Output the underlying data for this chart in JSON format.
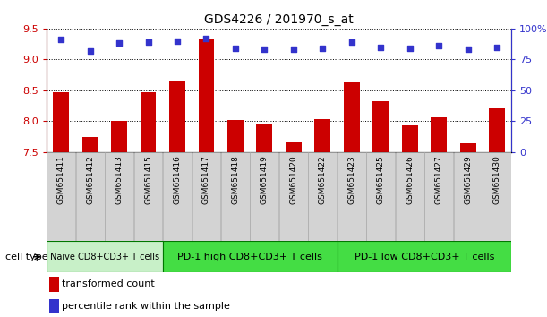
{
  "title": "GDS4226 / 201970_s_at",
  "categories": [
    "GSM651411",
    "GSM651412",
    "GSM651413",
    "GSM651415",
    "GSM651416",
    "GSM651417",
    "GSM651418",
    "GSM651419",
    "GSM651420",
    "GSM651422",
    "GSM651423",
    "GSM651425",
    "GSM651426",
    "GSM651427",
    "GSM651429",
    "GSM651430"
  ],
  "bar_values": [
    8.47,
    7.74,
    8.0,
    8.47,
    8.65,
    9.32,
    8.02,
    7.96,
    7.66,
    8.03,
    8.63,
    8.33,
    7.93,
    8.07,
    7.65,
    8.21
  ],
  "dot_values": [
    91,
    82,
    88,
    89,
    90,
    92,
    84,
    83,
    83,
    84,
    89,
    85,
    84,
    86,
    83,
    85
  ],
  "ylim_left": [
    7.5,
    9.5
  ],
  "ylim_right": [
    0,
    100
  ],
  "bar_color": "#cc0000",
  "dot_color": "#3333cc",
  "grid_color": "#000000",
  "title_color": "#000000",
  "left_tick_color": "#cc0000",
  "right_tick_color": "#3333cc",
  "yticks_left": [
    7.5,
    8.0,
    8.5,
    9.0,
    9.5
  ],
  "yticks_right": [
    0,
    25,
    50,
    75,
    100
  ],
  "right_tick_labels": [
    "0",
    "25",
    "50",
    "75",
    "100%"
  ],
  "group_defs": [
    {
      "start": 0,
      "end": 3,
      "color": "#c8f0c8",
      "label": "Naive CD8+CD3+ T cells",
      "fontsize": 7
    },
    {
      "start": 4,
      "end": 9,
      "color": "#44dd44",
      "label": "PD-1 high CD8+CD3+ T cells",
      "fontsize": 8
    },
    {
      "start": 10,
      "end": 15,
      "color": "#44dd44",
      "label": "PD-1 low CD8+CD3+ T cells",
      "fontsize": 8
    }
  ],
  "cell_type_label": "cell type",
  "legend_items": [
    {
      "label": "transformed count",
      "color": "#cc0000"
    },
    {
      "label": "percentile rank within the sample",
      "color": "#3333cc"
    }
  ]
}
